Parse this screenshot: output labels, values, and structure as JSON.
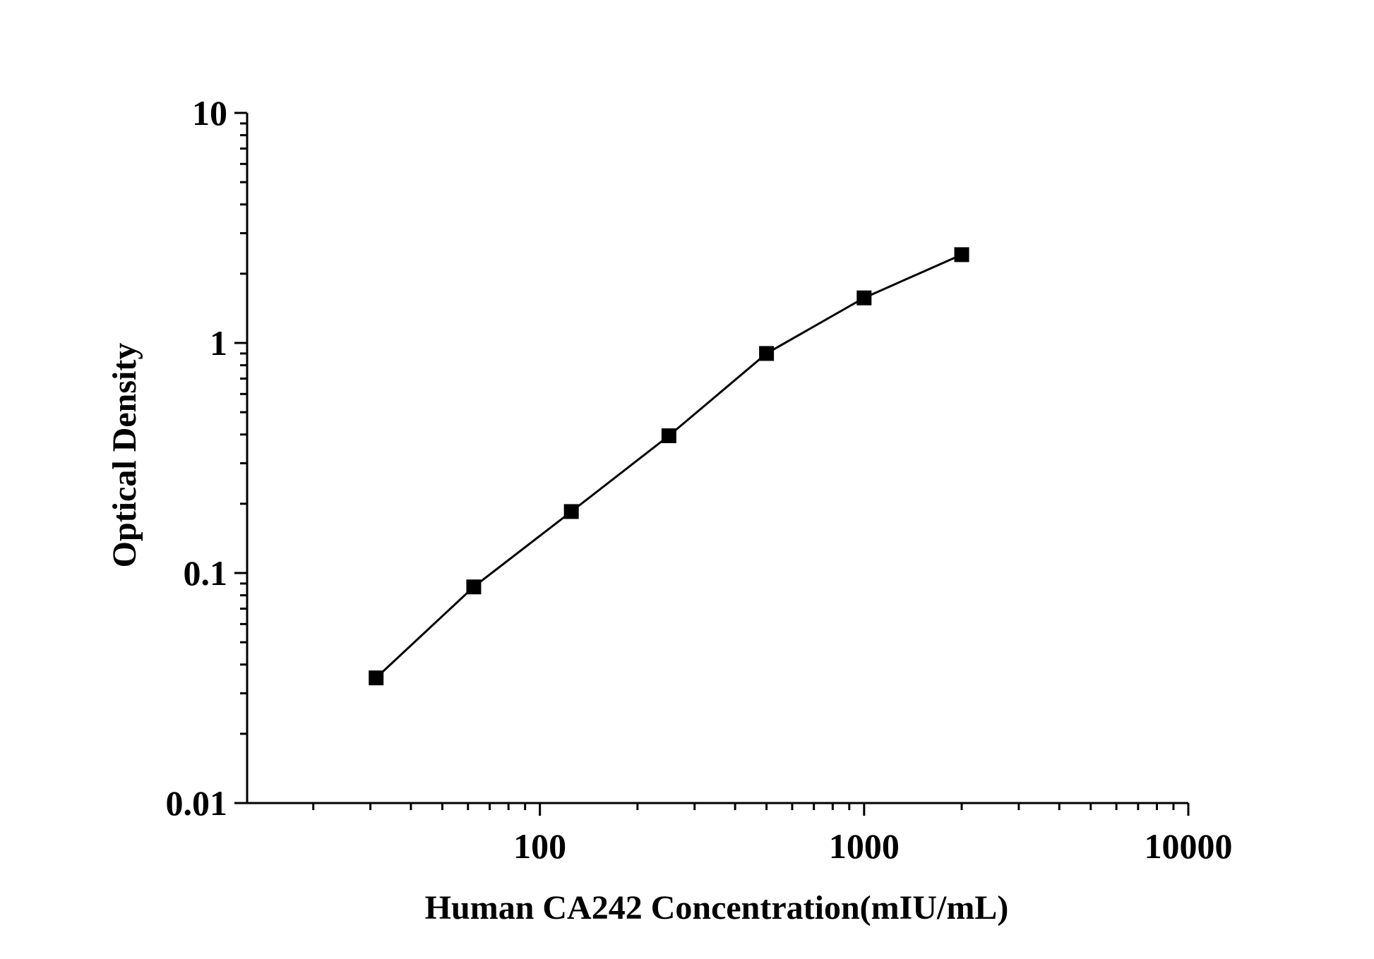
{
  "chart_data": {
    "type": "scatter",
    "title": "",
    "xlabel": "Human CA242 Concentration(mIU/mL)",
    "ylabel": "Optical Density",
    "x_scale": "log",
    "y_scale": "log",
    "xlim": [
      12.5,
      10000
    ],
    "ylim": [
      0.01,
      10
    ],
    "x_ticks": [
      100,
      1000,
      10000
    ],
    "x_tick_labels": [
      "100",
      "1000",
      "10000"
    ],
    "y_ticks": [
      0.01,
      0.1,
      1,
      10
    ],
    "y_tick_labels": [
      "0.01",
      "0.1",
      "1",
      "10"
    ],
    "grid": false,
    "legend": "none",
    "line_color": "#000000",
    "marker": "square",
    "series": [
      {
        "x": [
          31.25,
          62.5,
          125,
          250,
          500,
          1000,
          2000
        ],
        "y": [
          0.035,
          0.087,
          0.185,
          0.395,
          0.9,
          1.57,
          2.42
        ]
      }
    ]
  }
}
